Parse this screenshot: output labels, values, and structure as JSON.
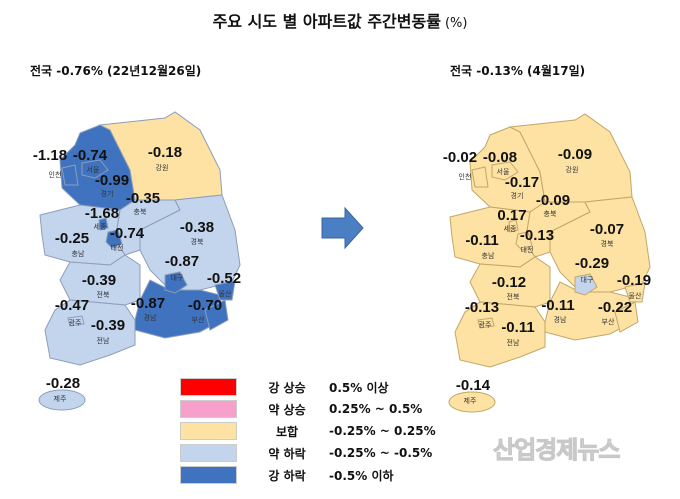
{
  "title": "주요 시도 별 아파트값 주간변동률",
  "title_unit": "(%)",
  "left_map": {
    "subtitle": "전국 -0.76% (22년12월26일)"
  },
  "right_map": {
    "subtitle": "전국 -0.13% (4월17일)"
  },
  "arrow_icon": "right-arrow-icon",
  "legend": [
    {
      "key": "strong_up",
      "label": "강 상승",
      "range": "0.5% 이상",
      "color": "#ff0000"
    },
    {
      "key": "weak_up",
      "label": "약 상승",
      "range": "0.25% ~ 0.5%",
      "color": "#f7a0cc"
    },
    {
      "key": "flat",
      "label": "보합",
      "range": "-0.25% ~ 0.25%",
      "color": "#fde2a3"
    },
    {
      "key": "weak_down",
      "label": "약 하락",
      "range": "-0.25% ~ -0.5%",
      "color": "#c3d5ec"
    },
    {
      "key": "strong_down",
      "label": "강 하락",
      "range": "-0.5% 이하",
      "color": "#3f72bf"
    }
  ],
  "regions": [
    {
      "id": "gyeonggi",
      "name": "경기",
      "left": "-0.99",
      "left_cat": "strong_down",
      "right": "-0.17",
      "right_cat": "flat"
    },
    {
      "id": "gangwon",
      "name": "강원",
      "left": "-0.18",
      "left_cat": "flat",
      "right": "-0.09",
      "right_cat": "flat"
    },
    {
      "id": "chungbuk",
      "name": "충북",
      "left": "-0.35",
      "left_cat": "weak_down",
      "right": "-0.09",
      "right_cat": "flat"
    },
    {
      "id": "chungnam",
      "name": "충남",
      "left": "-0.25",
      "left_cat": "weak_down",
      "right": "-0.11",
      "right_cat": "flat"
    },
    {
      "id": "gyeongbuk",
      "name": "경북",
      "left": "-0.38",
      "left_cat": "weak_down",
      "right": "-0.07",
      "right_cat": "flat"
    },
    {
      "id": "jeonbuk",
      "name": "전북",
      "left": "-0.39",
      "left_cat": "weak_down",
      "right": "-0.12",
      "right_cat": "flat"
    },
    {
      "id": "jeonnam",
      "name": "전남",
      "left": "-0.39",
      "left_cat": "weak_down",
      "right": "-0.11",
      "right_cat": "flat"
    },
    {
      "id": "gyeongnam",
      "name": "경남",
      "left": "-0.87",
      "left_cat": "strong_down",
      "right": "-0.11",
      "right_cat": "flat"
    },
    {
      "id": "seoul",
      "name": "서울",
      "left": "-0.74",
      "left_cat": "strong_down",
      "right": "-0.08",
      "right_cat": "flat"
    },
    {
      "id": "incheon",
      "name": "인천",
      "left": "-1.18",
      "left_cat": "strong_down",
      "right": "-0.02",
      "right_cat": "flat"
    },
    {
      "id": "sejong",
      "name": "세종",
      "left": "-1.68",
      "left_cat": "strong_down",
      "right": "0.17",
      "right_cat": "flat"
    },
    {
      "id": "daejeon",
      "name": "대전",
      "left": "-0.74",
      "left_cat": "strong_down",
      "right": "-0.13",
      "right_cat": "flat"
    },
    {
      "id": "daegu",
      "name": "대구",
      "left": "-0.87",
      "left_cat": "strong_down",
      "right": "-0.29",
      "right_cat": "weak_down"
    },
    {
      "id": "ulsan",
      "name": "울산",
      "left": "-0.52",
      "left_cat": "strong_down",
      "right": "-0.19",
      "right_cat": "flat"
    },
    {
      "id": "busan",
      "name": "부산",
      "left": "-0.70",
      "left_cat": "strong_down",
      "right": "-0.22",
      "right_cat": "flat"
    },
    {
      "id": "gwangju",
      "name": "광주",
      "left": "-0.47",
      "left_cat": "weak_down",
      "right": "-0.13",
      "right_cat": "flat"
    },
    {
      "id": "jeju",
      "name": "제주",
      "left": "-0.28",
      "left_cat": "weak_down",
      "right": "-0.14",
      "right_cat": "flat"
    }
  ],
  "watermark": "산업경제뉴스"
}
